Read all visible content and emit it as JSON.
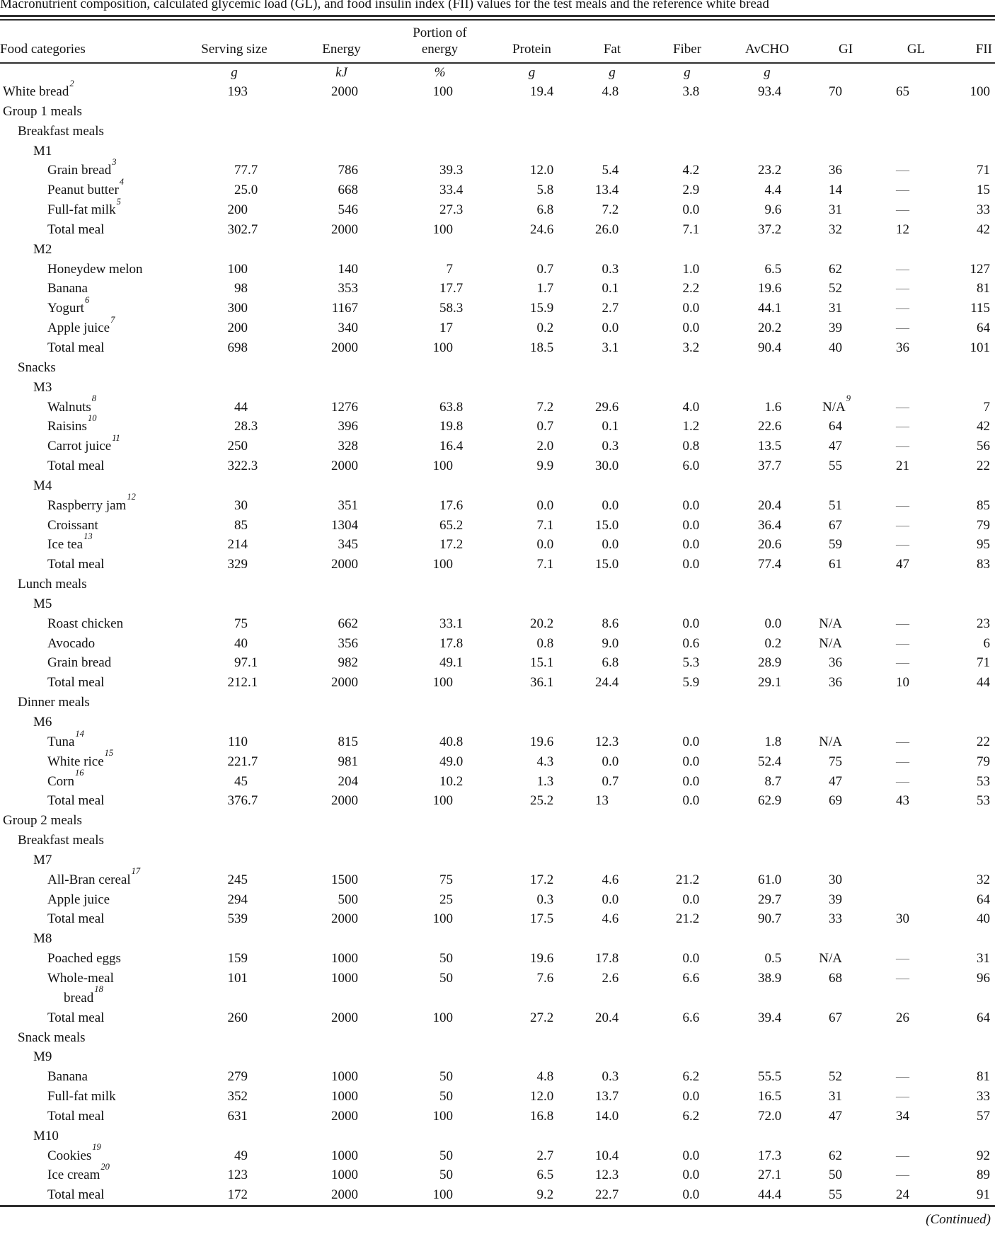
{
  "title": "Macronutrient composition, calculated glycemic load (GL), and food insulin index (FII) values for the test meals and the reference white bread",
  "footer": {
    "continued": "(Continued)"
  },
  "colors": {
    "bg": "#ffffff",
    "text": "#121212",
    "dash": "#7f7f7f",
    "rule": "#2e2e2e"
  },
  "table": {
    "columns": [
      {
        "id": "food",
        "top": "",
        "label": "Food categories",
        "unit": ""
      },
      {
        "id": "serving",
        "top": "",
        "label": "Serving size",
        "unit": "g"
      },
      {
        "id": "energy",
        "top": "",
        "label": "Energy",
        "unit": "kJ"
      },
      {
        "id": "portion",
        "top": "Portion of",
        "label": "energy",
        "unit": "%"
      },
      {
        "id": "protein",
        "top": "",
        "label": "Protein",
        "unit": "g"
      },
      {
        "id": "fat",
        "top": "",
        "label": "Fat",
        "unit": "g"
      },
      {
        "id": "fiber",
        "top": "",
        "label": "Fiber",
        "unit": "g"
      },
      {
        "id": "avcho",
        "top": "",
        "label": "AvCHO",
        "unit": "g"
      },
      {
        "id": "gi",
        "top": "",
        "label": "GI",
        "unit": ""
      },
      {
        "id": "gl",
        "top": "",
        "label": "GL",
        "unit": ""
      },
      {
        "id": "fii",
        "top": "",
        "label": "FII",
        "unit": ""
      }
    ],
    "rows": [
      {
        "label": "White bread",
        "sup": "2",
        "indent": 0,
        "values": [
          "193",
          "2000",
          "100",
          "19.4",
          "4.8",
          "3.8",
          "93.4",
          "70",
          "65",
          "100"
        ]
      },
      {
        "label": "Group 1 meals",
        "indent": 0,
        "values": []
      },
      {
        "label": "Breakfast meals",
        "indent": 1,
        "values": []
      },
      {
        "label": "M1",
        "indent": 2,
        "values": []
      },
      {
        "label": "Grain bread",
        "sup": "3",
        "indent": 3,
        "values": [
          "77.7",
          "786",
          "39.3",
          "12.0",
          "5.4",
          "4.2",
          "23.2",
          "36",
          "—",
          "71"
        ]
      },
      {
        "label": "Peanut butter",
        "sup": "4",
        "indent": 3,
        "values": [
          "25.0",
          "668",
          "33.4",
          "5.8",
          "13.4",
          "2.9",
          "4.4",
          "14",
          "—",
          "15"
        ]
      },
      {
        "label": "Full-fat milk",
        "sup": "5",
        "indent": 3,
        "values": [
          "200",
          "546",
          "27.3",
          "6.8",
          "7.2",
          "0.0",
          "9.6",
          "31",
          "—",
          "33"
        ]
      },
      {
        "label": "Total meal",
        "indent": 3,
        "values": [
          "302.7",
          "2000",
          "100",
          "24.6",
          "26.0",
          "7.1",
          "37.2",
          "32",
          "12",
          "42"
        ]
      },
      {
        "label": "M2",
        "indent": 2,
        "values": []
      },
      {
        "label": "Honeydew melon",
        "indent": 3,
        "values": [
          "100",
          "140",
          "7",
          "0.7",
          "0.3",
          "1.0",
          "6.5",
          "62",
          "—",
          "127"
        ]
      },
      {
        "label": "Banana",
        "indent": 3,
        "values": [
          "98",
          "353",
          "17.7",
          "1.7",
          "0.1",
          "2.2",
          "19.6",
          "52",
          "—",
          "81"
        ]
      },
      {
        "label": "Yogurt",
        "sup": "6",
        "indent": 3,
        "values": [
          "300",
          "1167",
          "58.3",
          "15.9",
          "2.7",
          "0.0",
          "44.1",
          "31",
          "—",
          "115"
        ]
      },
      {
        "label": "Apple juice",
        "sup": "7",
        "indent": 3,
        "values": [
          "200",
          "340",
          "17",
          "0.2",
          "0.0",
          "0.0",
          "20.2",
          "39",
          "—",
          "64"
        ]
      },
      {
        "label": "Total meal",
        "indent": 3,
        "values": [
          "698",
          "2000",
          "100",
          "18.5",
          "3.1",
          "3.2",
          "90.4",
          "40",
          "36",
          "101"
        ]
      },
      {
        "label": "Snacks",
        "indent": 1,
        "values": []
      },
      {
        "label": "M3",
        "indent": 2,
        "values": []
      },
      {
        "label": "Walnuts",
        "sup": "8",
        "indent": 3,
        "values": [
          "44",
          "1276",
          "63.8",
          "7.2",
          "29.6",
          "4.0",
          "1.6",
          "N/A^9",
          "—",
          "7"
        ]
      },
      {
        "label": "Raisins",
        "sup": "10",
        "indent": 3,
        "values": [
          "28.3",
          "396",
          "19.8",
          "0.7",
          "0.1",
          "1.2",
          "22.6",
          "64",
          "—",
          "42"
        ]
      },
      {
        "label": "Carrot juice",
        "sup": "11",
        "indent": 3,
        "values": [
          "250",
          "328",
          "16.4",
          "2.0",
          "0.3",
          "0.8",
          "13.5",
          "47",
          "—",
          "56"
        ]
      },
      {
        "label": "Total meal",
        "indent": 3,
        "values": [
          "322.3",
          "2000",
          "100",
          "9.9",
          "30.0",
          "6.0",
          "37.7",
          "55",
          "21",
          "22"
        ]
      },
      {
        "label": "M4",
        "indent": 2,
        "values": []
      },
      {
        "label": "Raspberry jam",
        "sup": "12",
        "indent": 3,
        "values": [
          "30",
          "351",
          "17.6",
          "0.0",
          "0.0",
          "0.0",
          "20.4",
          "51",
          "—",
          "85"
        ]
      },
      {
        "label": "Croissant",
        "indent": 3,
        "values": [
          "85",
          "1304",
          "65.2",
          "7.1",
          "15.0",
          "0.0",
          "36.4",
          "67",
          "—",
          "79"
        ]
      },
      {
        "label": "Ice tea",
        "sup": "13",
        "indent": 3,
        "values": [
          "214",
          "345",
          "17.2",
          "0.0",
          "0.0",
          "0.0",
          "20.6",
          "59",
          "—",
          "95"
        ]
      },
      {
        "label": "Total meal",
        "indent": 3,
        "values": [
          "329",
          "2000",
          "100",
          "7.1",
          "15.0",
          "0.0",
          "77.4",
          "61",
          "47",
          "83"
        ]
      },
      {
        "label": "Lunch meals",
        "indent": 1,
        "values": []
      },
      {
        "label": "M5",
        "indent": 2,
        "values": []
      },
      {
        "label": "Roast chicken",
        "indent": 3,
        "values": [
          "75",
          "662",
          "33.1",
          "20.2",
          "8.6",
          "0.0",
          "0.0",
          "N/A",
          "—",
          "23"
        ]
      },
      {
        "label": "Avocado",
        "indent": 3,
        "values": [
          "40",
          "356",
          "17.8",
          "0.8",
          "9.0",
          "0.6",
          "0.2",
          "N/A",
          "—",
          "6"
        ]
      },
      {
        "label": "Grain bread",
        "indent": 3,
        "values": [
          "97.1",
          "982",
          "49.1",
          "15.1",
          "6.8",
          "5.3",
          "28.9",
          "36",
          "—",
          "71"
        ]
      },
      {
        "label": "Total meal",
        "indent": 3,
        "values": [
          "212.1",
          "2000",
          "100",
          "36.1",
          "24.4",
          "5.9",
          "29.1",
          "36",
          "10",
          "44"
        ]
      },
      {
        "label": "Dinner meals",
        "indent": 1,
        "values": []
      },
      {
        "label": "M6",
        "indent": 2,
        "values": []
      },
      {
        "label": "Tuna",
        "sup": "14",
        "indent": 3,
        "values": [
          "110",
          "815",
          "40.8",
          "19.6",
          "12.3",
          "0.0",
          "1.8",
          "N/A",
          "—",
          "22"
        ]
      },
      {
        "label": "White rice",
        "sup": "15",
        "indent": 3,
        "values": [
          "221.7",
          "981",
          "49.0",
          "4.3",
          "0.0",
          "0.0",
          "52.4",
          "75",
          "—",
          "79"
        ]
      },
      {
        "label": "Corn",
        "sup": "16",
        "indent": 3,
        "values": [
          "45",
          "204",
          "10.2",
          "1.3",
          "0.7",
          "0.0",
          "8.7",
          "47",
          "—",
          "53"
        ]
      },
      {
        "label": "Total meal",
        "indent": 3,
        "values": [
          "376.7",
          "2000",
          "100",
          "25.2",
          "13",
          "0.0",
          "62.9",
          "69",
          "43",
          "53"
        ]
      },
      {
        "label": "Group 2 meals",
        "indent": 0,
        "values": []
      },
      {
        "label": "Breakfast meals",
        "indent": 1,
        "values": []
      },
      {
        "label": "M7",
        "indent": 2,
        "values": []
      },
      {
        "label": "All-Bran cereal",
        "sup": "17",
        "indent": 3,
        "values": [
          "245",
          "1500",
          "75",
          "17.2",
          "4.6",
          "21.2",
          "61.0",
          "30",
          "",
          "32"
        ]
      },
      {
        "label": "Apple juice",
        "indent": 3,
        "values": [
          "294",
          "500",
          "25",
          "0.3",
          "0.0",
          "0.0",
          "29.7",
          "39",
          "",
          "64"
        ]
      },
      {
        "label": "Total meal",
        "indent": 3,
        "values": [
          "539",
          "2000",
          "100",
          "17.5",
          "4.6",
          "21.2",
          "90.7",
          "33",
          "30",
          "40"
        ]
      },
      {
        "label": "M8",
        "indent": 2,
        "values": []
      },
      {
        "label": "Poached eggs",
        "indent": 3,
        "values": [
          "159",
          "1000",
          "50",
          "19.6",
          "17.8",
          "0.0",
          "0.5",
          "N/A",
          "—",
          "31"
        ]
      },
      {
        "label": "Whole-meal",
        "indent": 3,
        "values": [
          "101",
          "1000",
          "50",
          "7.6",
          "2.6",
          "6.6",
          "38.9",
          "68",
          "—",
          "96"
        ]
      },
      {
        "label": "bread",
        "sup": "18",
        "indent": 4,
        "values": []
      },
      {
        "label": "Total meal",
        "indent": 3,
        "values": [
          "260",
          "2000",
          "100",
          "27.2",
          "20.4",
          "6.6",
          "39.4",
          "67",
          "26",
          "64"
        ]
      },
      {
        "label": "Snack meals",
        "indent": 1,
        "values": []
      },
      {
        "label": "M9",
        "indent": 2,
        "values": []
      },
      {
        "label": "Banana",
        "indent": 3,
        "values": [
          "279",
          "1000",
          "50",
          "4.8",
          "0.3",
          "6.2",
          "55.5",
          "52",
          "—",
          "81"
        ]
      },
      {
        "label": "Full-fat milk",
        "indent": 3,
        "values": [
          "352",
          "1000",
          "50",
          "12.0",
          "13.7",
          "0.0",
          "16.5",
          "31",
          "—",
          "33"
        ]
      },
      {
        "label": "Total meal",
        "indent": 3,
        "values": [
          "631",
          "2000",
          "100",
          "16.8",
          "14.0",
          "6.2",
          "72.0",
          "47",
          "34",
          "57"
        ]
      },
      {
        "label": "M10",
        "indent": 2,
        "values": []
      },
      {
        "label": "Cookies",
        "sup": "19",
        "indent": 3,
        "values": [
          "49",
          "1000",
          "50",
          "2.7",
          "10.4",
          "0.0",
          "17.3",
          "62",
          "—",
          "92"
        ]
      },
      {
        "label": "Ice cream",
        "sup": "20",
        "indent": 3,
        "values": [
          "123",
          "1000",
          "50",
          "6.5",
          "12.3",
          "0.0",
          "27.1",
          "50",
          "—",
          "89"
        ]
      },
      {
        "label": "Total meal",
        "indent": 3,
        "values": [
          "172",
          "2000",
          "100",
          "9.2",
          "22.7",
          "0.0",
          "44.4",
          "55",
          "24",
          "91"
        ]
      }
    ]
  }
}
